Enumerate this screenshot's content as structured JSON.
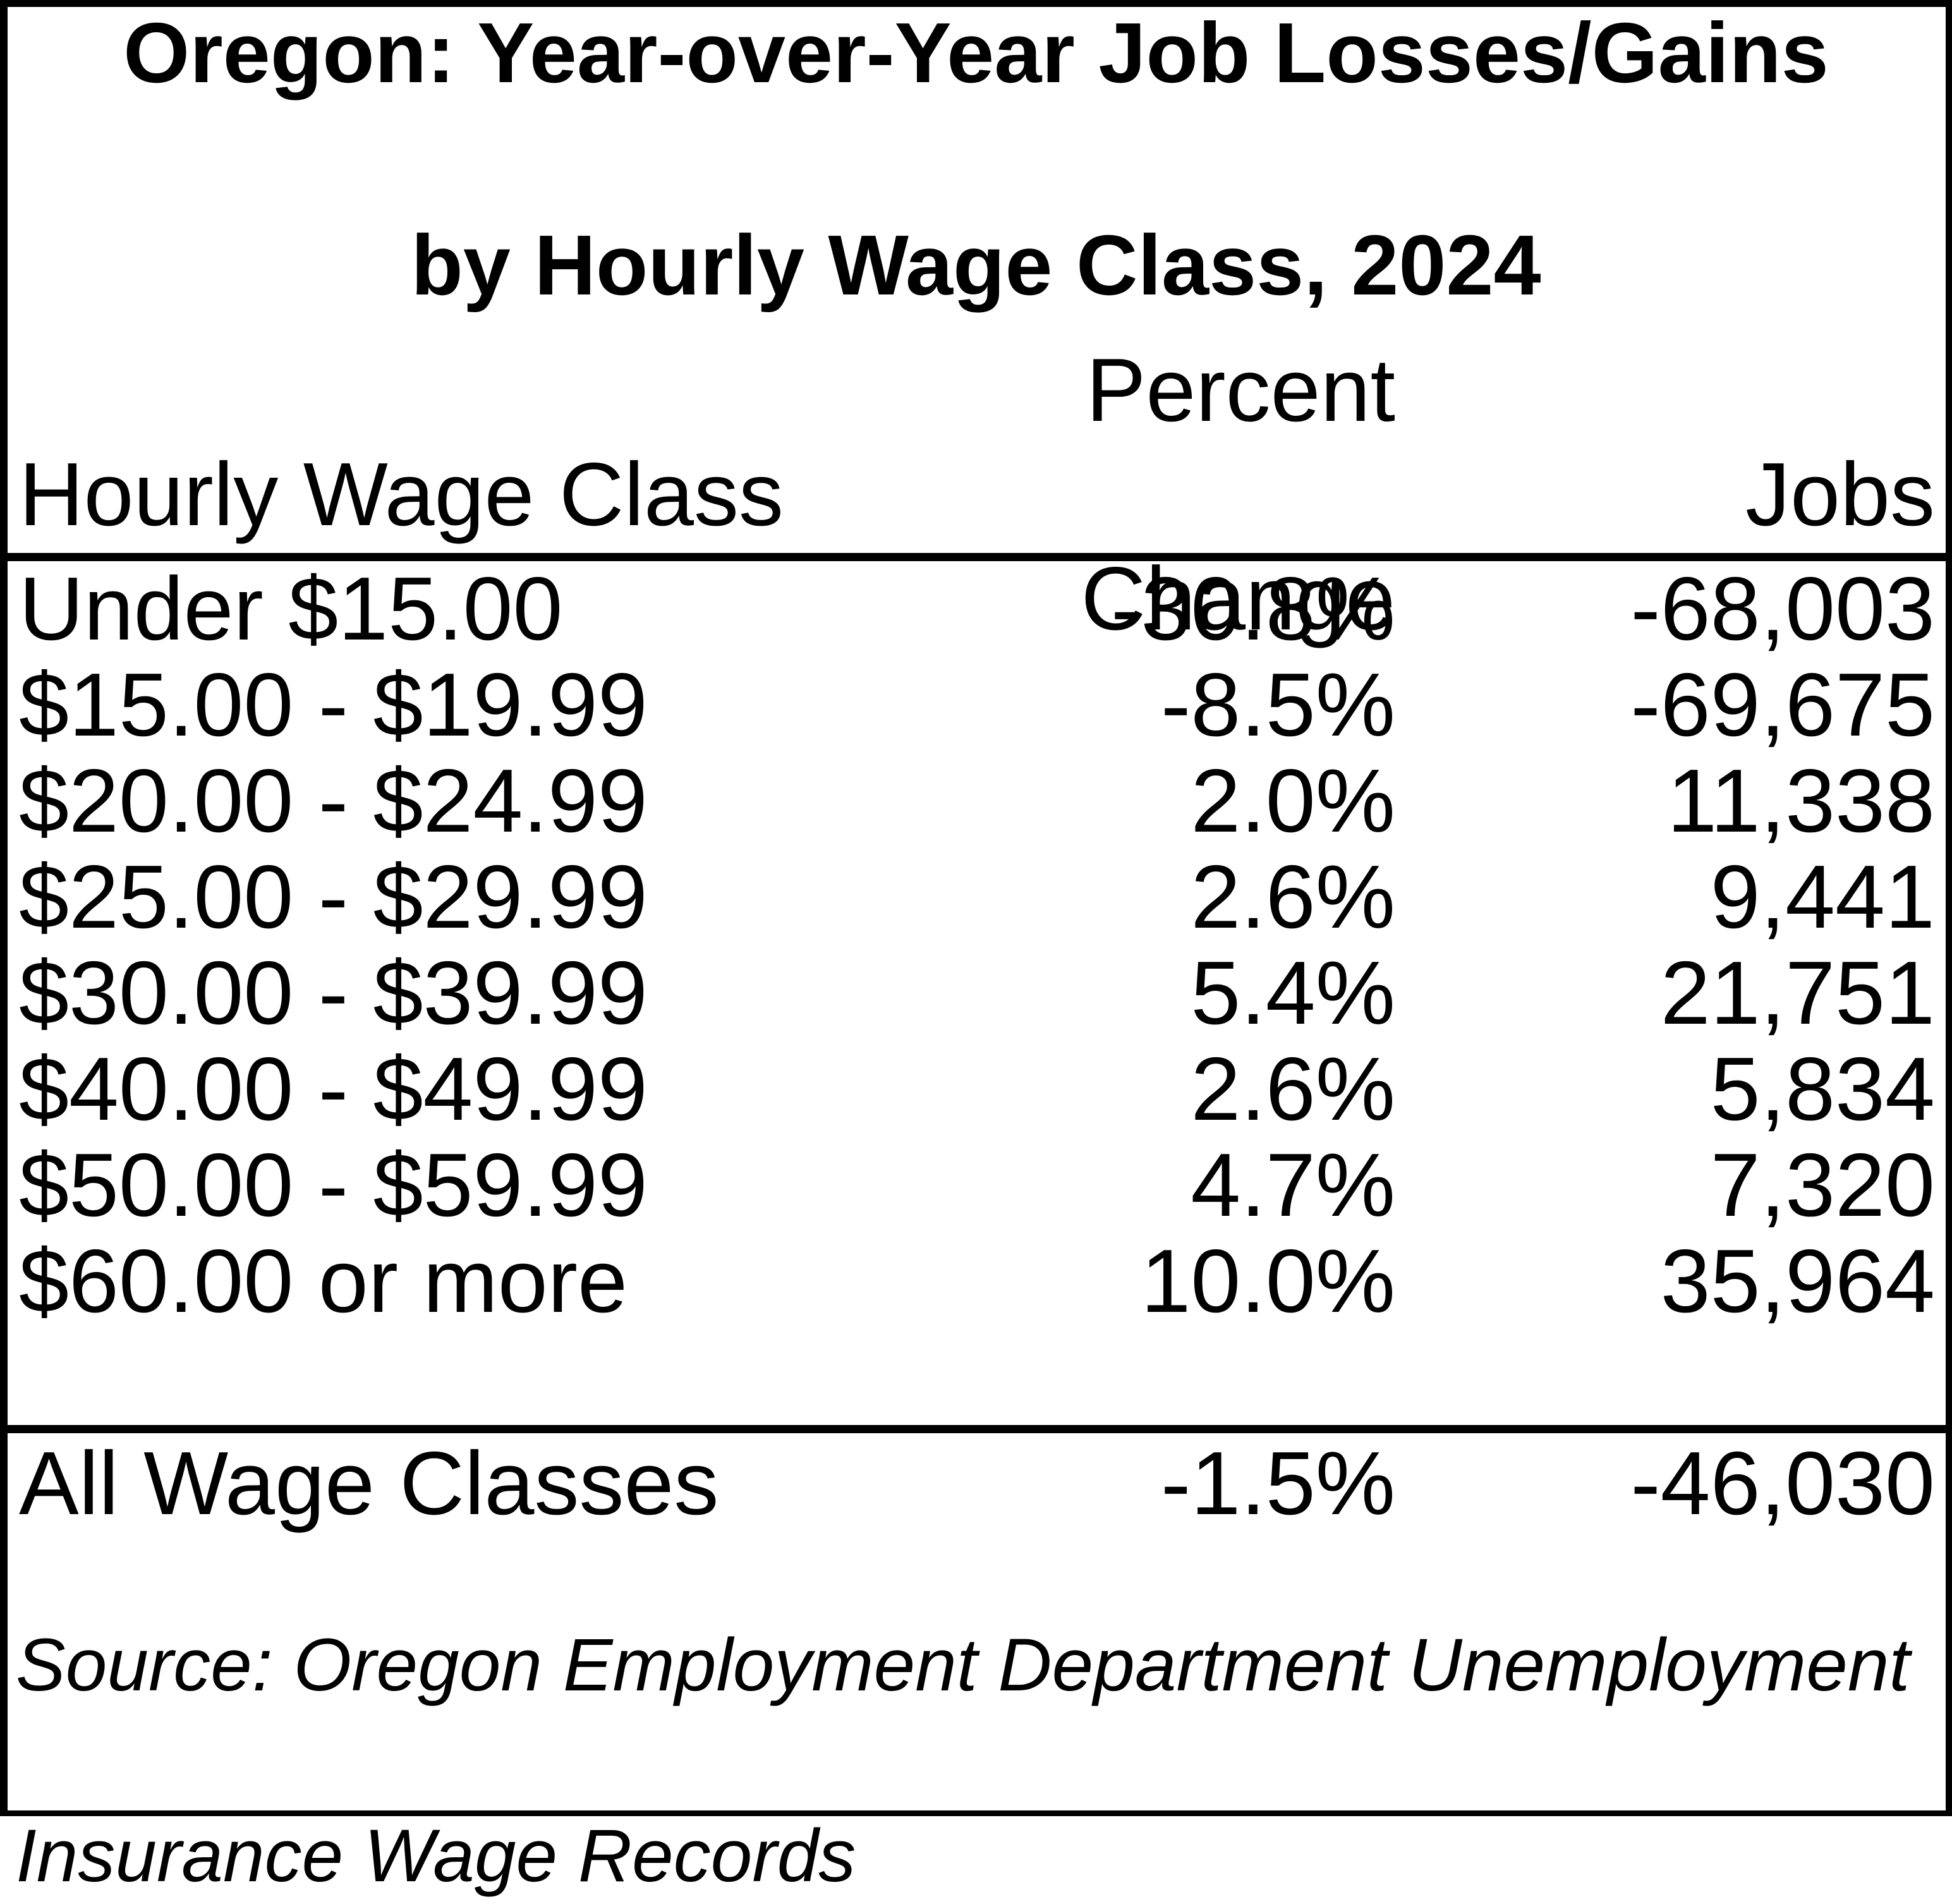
{
  "title": {
    "line1": "Oregon: Year-over-Year Job Losses/Gains",
    "line2": "by Hourly Wage Class, 2024"
  },
  "table": {
    "columns": {
      "wage_class": "Hourly Wage Class",
      "percent_line1": "Percent",
      "percent_line2": "Change",
      "jobs": "Jobs"
    },
    "rows": [
      {
        "wage_class": "Under $15.00",
        "percent_change": "-30.8%",
        "jobs": "-68,003"
      },
      {
        "wage_class": "$15.00 - $19.99",
        "percent_change": "-8.5%",
        "jobs": "-69,675"
      },
      {
        "wage_class": "$20.00 - $24.99",
        "percent_change": "2.0%",
        "jobs": "11,338"
      },
      {
        "wage_class": "$25.00 - $29.99",
        "percent_change": "2.6%",
        "jobs": "9,441"
      },
      {
        "wage_class": "$30.00 - $39.99",
        "percent_change": "5.4%",
        "jobs": "21,751"
      },
      {
        "wage_class": "$40.00 - $49.99",
        "percent_change": "2.6%",
        "jobs": "5,834"
      },
      {
        "wage_class": "$50.00 - $59.99",
        "percent_change": "4.7%",
        "jobs": "7,320"
      },
      {
        "wage_class": "$60.00 or more",
        "percent_change": "10.0%",
        "jobs": "35,964"
      }
    ],
    "total_row": {
      "wage_class": "All Wage Classes",
      "percent_change": "-1.5%",
      "jobs": "-46,030"
    }
  },
  "source": {
    "line1": "Source: Oregon Employment Department Unemployment",
    "line2": "Insurance Wage Records"
  },
  "colors": {
    "text": "#000000",
    "background": "#ffffff",
    "border": "#000000"
  },
  "chart_data": {
    "type": "table",
    "title": "Oregon: Year-over-Year Job Losses/Gains by Hourly Wage Class, 2024",
    "columns": [
      "Hourly Wage Class",
      "Percent Change",
      "Jobs"
    ],
    "rows": [
      [
        "Under $15.00",
        -30.8,
        -68003
      ],
      [
        "$15.00 - $19.99",
        -8.5,
        -69675
      ],
      [
        "$20.00 - $24.99",
        2.0,
        11338
      ],
      [
        "$25.00 - $29.99",
        2.6,
        9441
      ],
      [
        "$30.00 - $39.99",
        5.4,
        21751
      ],
      [
        "$40.00 - $49.99",
        2.6,
        5834
      ],
      [
        "$50.00 - $59.99",
        4.7,
        7320
      ],
      [
        "$60.00 or more",
        10.0,
        35964
      ]
    ],
    "total": [
      "All Wage Classes",
      -1.5,
      -46030
    ],
    "source": "Source: Oregon Employment Department Unemployment Insurance Wage Records"
  }
}
